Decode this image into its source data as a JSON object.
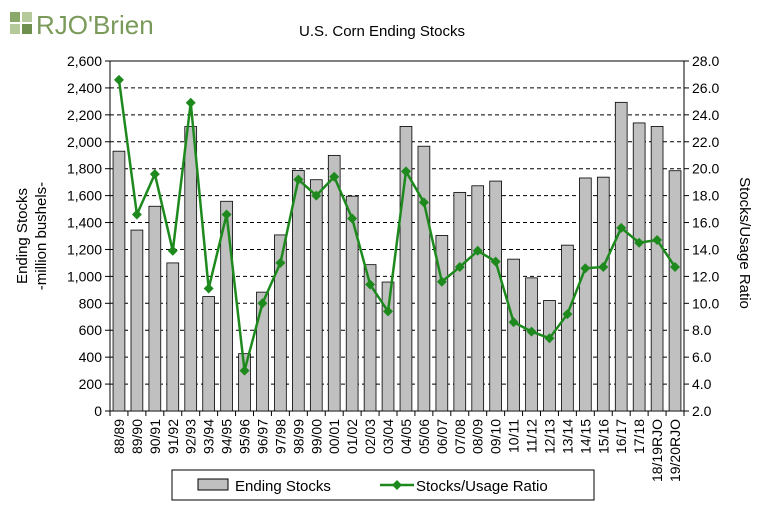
{
  "logo": {
    "text": "RJO'Brien",
    "color": "#7a9a5a"
  },
  "chart_data": {
    "type": "bar+line",
    "title": "U.S. Corn Ending Stocks",
    "ylabel_left": [
      "Ending Stocks",
      "-million bushels-"
    ],
    "ylabel_right": "Stocks/Usage Ratio",
    "categories": [
      "88/89",
      "89/90",
      "90/91",
      "91/92",
      "92/93",
      "93/94",
      "94/95",
      "95/96",
      "96/97",
      "97/98",
      "98/99",
      "99/00",
      "00/01",
      "01/02",
      "02/03",
      "03/04",
      "04/05",
      "05/06",
      "06/07",
      "07/08",
      "08/09",
      "09/10",
      "10/11",
      "11/12",
      "12/13",
      "13/14",
      "14/15",
      "15/16",
      "16/17",
      "17/18",
      "18/19RJO",
      "19/20RJO"
    ],
    "ylim_left": [
      0,
      2600
    ],
    "yticks_left": [
      "0",
      "200",
      "400",
      "600",
      "800",
      "1,000",
      "1,200",
      "1,400",
      "1,600",
      "1,800",
      "2,000",
      "2,200",
      "2,400",
      "2,600"
    ],
    "ylim_right": [
      2.0,
      28.0
    ],
    "yticks_right": [
      "2.0",
      "4.0",
      "6.0",
      "8.0",
      "10.0",
      "12.0",
      "14.0",
      "16.0",
      "18.0",
      "20.0",
      "22.0",
      "24.0",
      "26.0",
      "28.0"
    ],
    "series": [
      {
        "name": "Ending Stocks",
        "type": "bar",
        "axis": "left",
        "color": "#c0c0c0",
        "values": [
          1930,
          1344,
          1521,
          1100,
          2113,
          850,
          1558,
          426,
          883,
          1308,
          1787,
          1718,
          1899,
          1596,
          1087,
          958,
          2114,
          1967,
          1304,
          1624,
          1673,
          1708,
          1128,
          989,
          821,
          1232,
          1731,
          1737,
          2293,
          2140,
          2114,
          1785
        ]
      },
      {
        "name": "Stocks/Usage Ratio",
        "type": "line",
        "axis": "right",
        "color": "#1e8a1e",
        "values": [
          26.6,
          16.6,
          19.6,
          13.9,
          24.9,
          11.1,
          16.6,
          5.0,
          10.0,
          13.0,
          19.2,
          18.0,
          19.4,
          16.3,
          11.4,
          9.4,
          19.8,
          17.5,
          11.6,
          12.7,
          13.9,
          13.1,
          8.6,
          7.9,
          7.4,
          9.2,
          12.6,
          12.7,
          15.6,
          14.5,
          14.7,
          12.7
        ]
      }
    ],
    "grid": true,
    "legend": {
      "position": "bottom",
      "items": [
        "Ending Stocks",
        "Stocks/Usage Ratio"
      ]
    }
  }
}
